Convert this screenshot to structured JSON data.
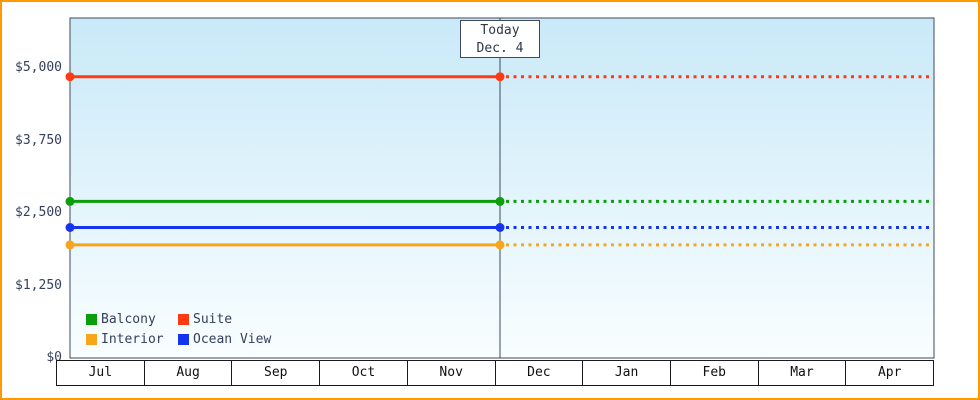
{
  "colors": {
    "frame_border": "#ff9900",
    "plot_bg_top": "#c9e9f8",
    "plot_bg_bottom": "#f9feff",
    "axis": "#3e4a5c",
    "month_border": "#1a1a1a",
    "text_primary": "#35405e",
    "month_text": "#101010",
    "today_box_bg": "#ffffff"
  },
  "chart_data": {
    "type": "line",
    "x_categories": [
      "Jul",
      "Aug",
      "Sep",
      "Oct",
      "Nov",
      "Dec",
      "Jan",
      "Feb",
      "Mar",
      "Apr"
    ],
    "ylim": [
      0,
      5000
    ],
    "yticks": [
      0,
      1250,
      2500,
      3750,
      5000
    ],
    "ytick_labels": [
      "$0",
      "$1,250",
      "$2,500",
      "$3,750",
      "$5,000"
    ],
    "grid": false,
    "legend_position": "bottom-left-inside",
    "today_marker": {
      "line1": "Today",
      "line2": "Dec. 4",
      "between_months": [
        "Nov",
        "Dec"
      ]
    },
    "series": [
      {
        "name": "Balcony",
        "color": "#0b9e0b",
        "value": 2700,
        "past_style": "solid",
        "future_style": "dotted"
      },
      {
        "name": "Suite",
        "color": "#ff3a12",
        "value": 4850,
        "past_style": "solid",
        "future_style": "dotted"
      },
      {
        "name": "Interior",
        "color": "#f7a61c",
        "value": 1950,
        "past_style": "solid",
        "future_style": "dotted"
      },
      {
        "name": "Ocean View",
        "color": "#1534ef",
        "value": 2250,
        "past_style": "solid",
        "future_style": "dotted"
      }
    ]
  }
}
